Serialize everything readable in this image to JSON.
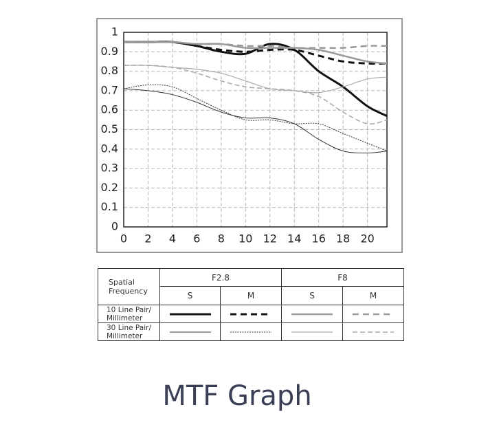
{
  "chart_data": {
    "type": "line",
    "title": "MTF Graph",
    "x": [
      0,
      2,
      4,
      6,
      8,
      10,
      12,
      14,
      16,
      18,
      20,
      21.6
    ],
    "xlim": [
      0,
      21.6
    ],
    "xticks": [
      0,
      2,
      4,
      6,
      8,
      10,
      12,
      14,
      16,
      18,
      20
    ],
    "ylim": [
      0,
      1
    ],
    "yticks": [
      0,
      0.1,
      0.2,
      0.3,
      0.4,
      0.5,
      0.6,
      0.7,
      0.8,
      0.9,
      1
    ],
    "grid": true,
    "series": [
      {
        "color": "#111111",
        "width": 3,
        "dash": "none",
        "values": [
          0.95,
          0.95,
          0.95,
          0.93,
          0.9,
          0.89,
          0.94,
          0.91,
          0.8,
          0.72,
          0.62,
          0.57
        ]
      },
      {
        "color": "#111111",
        "width": 3,
        "dash": "9,6",
        "values": [
          0.95,
          0.95,
          0.95,
          0.93,
          0.91,
          0.9,
          0.91,
          0.91,
          0.88,
          0.85,
          0.84,
          0.84
        ]
      },
      {
        "color": "#999999",
        "width": 2.5,
        "dash": "none",
        "values": [
          0.95,
          0.95,
          0.95,
          0.94,
          0.94,
          0.92,
          0.92,
          0.92,
          0.91,
          0.88,
          0.85,
          0.84
        ]
      },
      {
        "color": "#999999",
        "width": 2.5,
        "dash": "9,6",
        "values": [
          0.95,
          0.95,
          0.95,
          0.94,
          0.94,
          0.93,
          0.93,
          0.92,
          0.92,
          0.92,
          0.93,
          0.93
        ]
      },
      {
        "color": "#333333",
        "width": 1,
        "dash": "none",
        "values": [
          0.71,
          0.7,
          0.68,
          0.64,
          0.59,
          0.56,
          0.56,
          0.53,
          0.45,
          0.39,
          0.38,
          0.39
        ]
      },
      {
        "color": "#333333",
        "width": 1,
        "dash": "2,1.5",
        "values": [
          0.71,
          0.73,
          0.72,
          0.66,
          0.6,
          0.55,
          0.55,
          0.53,
          0.53,
          0.48,
          0.43,
          0.39
        ]
      },
      {
        "color": "#aaaaaa",
        "width": 1.2,
        "dash": "none",
        "values": [
          0.83,
          0.83,
          0.82,
          0.81,
          0.79,
          0.75,
          0.71,
          0.7,
          0.69,
          0.72,
          0.76,
          0.77
        ]
      },
      {
        "color": "#aaaaaa",
        "width": 1.6,
        "dash": "7,4",
        "values": [
          0.83,
          0.83,
          0.82,
          0.79,
          0.75,
          0.72,
          0.71,
          0.7,
          0.67,
          0.59,
          0.53,
          0.55
        ]
      }
    ],
    "legend_table": {
      "corner": "Spatial\nFrequency",
      "apertures": [
        "F2.8",
        "F8"
      ],
      "orientations": [
        "S",
        "M",
        "S",
        "M"
      ],
      "rows": [
        "10 Line Pair/\nMillimeter",
        "30 Line Pair/\nMillimeter"
      ]
    }
  }
}
